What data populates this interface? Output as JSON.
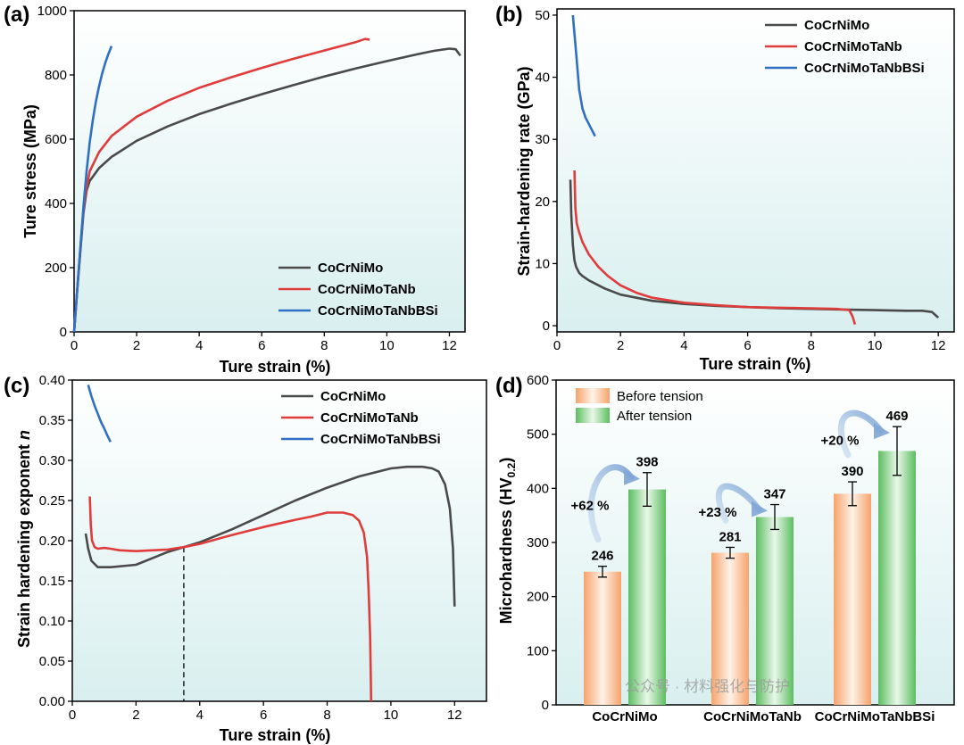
{
  "panels": [
    {
      "label": "(a)",
      "xlabel": "Ture strain (%)",
      "ylabel": "Ture stress (MPa)",
      "chart_data": {
        "type": "line",
        "xlim": [
          0,
          12.5
        ],
        "ylim": [
          0,
          1000
        ],
        "xticks": [
          0,
          2,
          4,
          6,
          8,
          10,
          12
        ],
        "yticks": [
          0,
          200,
          400,
          600,
          800,
          1000
        ],
        "legend_position": "bottom-right",
        "series": [
          {
            "name": "CoCrNiMo",
            "color": "#4a4a4a",
            "x": [
              0,
              0.1,
              0.2,
              0.3,
              0.4,
              0.5,
              0.8,
              1.2,
              2,
              3,
              4,
              5,
              6,
              7,
              8,
              9,
              10,
              11,
              11.5,
              12,
              12.2,
              12.35
            ],
            "y": [
              0,
              130,
              250,
              370,
              440,
              470,
              510,
              545,
              595,
              640,
              678,
              710,
              740,
              768,
              795,
              820,
              843,
              865,
              875,
              882,
              880,
              860
            ]
          },
          {
            "name": "CoCrNiMoTaNb",
            "color": "#e03c3c",
            "x": [
              0,
              0.1,
              0.2,
              0.3,
              0.4,
              0.5,
              0.8,
              1.2,
              2,
              3,
              4,
              5,
              6,
              7,
              8,
              9,
              9.3,
              9.45
            ],
            "y": [
              0,
              130,
              260,
              380,
              450,
              500,
              560,
              610,
              670,
              720,
              760,
              792,
              822,
              850,
              876,
              902,
              912,
              910
            ]
          },
          {
            "name": "CoCrNiMoTaNbBSi",
            "color": "#2f6fc4",
            "x": [
              0,
              0.1,
              0.2,
              0.3,
              0.4,
              0.5,
              0.6,
              0.7,
              0.8,
              0.9,
              1.0,
              1.1,
              1.2
            ],
            "y": [
              0,
              130,
              260,
              390,
              500,
              590,
              660,
              718,
              765,
              805,
              838,
              866,
              890
            ]
          }
        ]
      }
    },
    {
      "label": "(b)",
      "xlabel": "Ture strain (%)",
      "ylabel": "Strain-hardening rate (GPa)",
      "chart_data": {
        "type": "line",
        "xlim": [
          0,
          12.5
        ],
        "ylim": [
          -1,
          51
        ],
        "xticks": [
          0,
          2,
          4,
          6,
          8,
          10,
          12
        ],
        "yticks": [
          0,
          10,
          20,
          30,
          40,
          50
        ],
        "legend_position": "top-right",
        "series": [
          {
            "name": "CoCrNiMo",
            "color": "#4a4a4a",
            "x": [
              0.42,
              0.45,
              0.5,
              0.55,
              0.6,
              0.7,
              0.8,
              1.0,
              1.5,
              2,
              3,
              4,
              5,
              6,
              7,
              8,
              9,
              10,
              11,
              11.5,
              11.8,
              12.0
            ],
            "y": [
              23.5,
              18,
              13,
              10.5,
              9.5,
              8.5,
              8,
              7.3,
              6,
              5,
              4,
              3.5,
              3.2,
              3.0,
              2.8,
              2.7,
              2.6,
              2.5,
              2.4,
              2.4,
              2.2,
              1.3
            ]
          },
          {
            "name": "CoCrNiMoTaNb",
            "color": "#e03c3c",
            "x": [
              0.55,
              0.58,
              0.62,
              0.7,
              0.8,
              1.0,
              1.3,
              1.6,
              2,
              2.5,
              3,
              4,
              5,
              6,
              7,
              8,
              8.8,
              9.2,
              9.3,
              9.38
            ],
            "y": [
              25,
              19,
              16.5,
              15,
              13.5,
              11.5,
              9.5,
              8,
              6.5,
              5.3,
              4.5,
              3.7,
              3.3,
              3.0,
              2.9,
              2.8,
              2.7,
              2.5,
              1.5,
              0.2
            ]
          },
          {
            "name": "CoCrNiMoTaNbBSi",
            "color": "#2f6fc4",
            "x": [
              0.5,
              0.55,
              0.6,
              0.7,
              0.8,
              0.9,
              1.0,
              1.1,
              1.2
            ],
            "y": [
              50,
              47,
              44,
              38,
              35,
              33.5,
              32.5,
              31.5,
              30.5
            ]
          }
        ]
      }
    },
    {
      "label": "(c)",
      "xlabel": "Ture strain (%)",
      "ylabel": "Strain hardening exponent ",
      "ylabel_italic": "n",
      "chart_data": {
        "type": "line",
        "xlim": [
          0,
          13
        ],
        "ylim": [
          0,
          0.4
        ],
        "xticks": [
          0,
          2,
          4,
          6,
          8,
          10,
          12
        ],
        "yticks": [
          0.0,
          0.05,
          0.1,
          0.15,
          0.2,
          0.25,
          0.3,
          0.35,
          0.4
        ],
        "legend_position": "top-right",
        "reference_line_x": 3.5,
        "series": [
          {
            "name": "CoCrNiMo",
            "color": "#4a4a4a",
            "x": [
              0.42,
              0.5,
              0.6,
              0.8,
              1.2,
              2,
              2.5,
              3,
              3.5,
              4,
              5,
              6,
              7,
              8,
              9,
              10,
              10.5,
              11,
              11.3,
              11.5,
              11.7,
              11.85,
              11.95,
              12.0
            ],
            "y": [
              0.209,
              0.19,
              0.175,
              0.167,
              0.167,
              0.17,
              0.178,
              0.186,
              0.192,
              0.198,
              0.214,
              0.232,
              0.25,
              0.266,
              0.28,
              0.29,
              0.292,
              0.292,
              0.29,
              0.286,
              0.27,
              0.24,
              0.19,
              0.118
            ]
          },
          {
            "name": "CoCrNiMoTaNb",
            "color": "#e03c3c",
            "x": [
              0.55,
              0.58,
              0.62,
              0.7,
              0.8,
              1.0,
              1.2,
              1.5,
              2,
              3,
              3.5,
              4,
              5,
              6,
              7,
              7.5,
              8,
              8.5,
              8.8,
              9.0,
              9.15,
              9.25,
              9.3,
              9.35,
              9.38
            ],
            "y": [
              0.255,
              0.22,
              0.2,
              0.192,
              0.19,
              0.191,
              0.19,
              0.188,
              0.187,
              0.189,
              0.192,
              0.196,
              0.207,
              0.217,
              0.226,
              0.23,
              0.235,
              0.235,
              0.232,
              0.225,
              0.21,
              0.18,
              0.14,
              0.08,
              0.0
            ]
          },
          {
            "name": "CoCrNiMoTaNbBSi",
            "color": "#2f6fc4",
            "x": [
              0.5,
              0.6,
              0.7,
              0.8,
              0.9,
              1.0,
              1.1,
              1.2
            ],
            "y": [
              0.394,
              0.38,
              0.368,
              0.358,
              0.348,
              0.34,
              0.331,
              0.323
            ]
          }
        ]
      }
    },
    {
      "label": "(d)",
      "ylabel": "Microhardness (HV",
      "ylabel_sub": "0.2",
      "ylabel_close": ")",
      "chart_data": {
        "type": "bar",
        "ylim": [
          0,
          600
        ],
        "yticks": [
          0,
          100,
          200,
          300,
          400,
          500,
          600
        ],
        "legend_position": "top-left",
        "categories": [
          "CoCrNiMo",
          "CoCrNiMoTaNb",
          "CoCrNiMoTaNbBSi"
        ],
        "series": [
          {
            "name": "Before tension",
            "color": "#f5a26a",
            "values": [
              246,
              281,
              390
            ],
            "errors": [
              10,
              10,
              22
            ]
          },
          {
            "name": "After tension",
            "color": "#5fbf62",
            "values": [
              398,
              347,
              469
            ],
            "errors": [
              31,
              23,
              45
            ]
          }
        ],
        "value_labels": [
          "246",
          "281",
          "390",
          "398",
          "347",
          "469"
        ],
        "increase_labels": [
          "+62 %",
          "+23 %",
          "+20 %"
        ]
      }
    }
  ],
  "watermark": "公众号 · 材料强化与防护"
}
